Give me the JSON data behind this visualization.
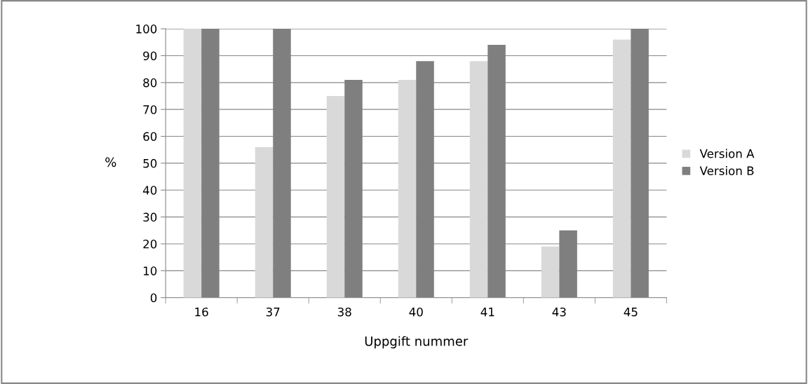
{
  "chart_data": {
    "type": "bar",
    "xlabel": "Uppgift nummer",
    "ylabel": "%",
    "categories": [
      "16",
      "37",
      "38",
      "40",
      "41",
      "43",
      "45"
    ],
    "series": [
      {
        "name": "Version A",
        "color": "#d9d9d9",
        "values": [
          100,
          56,
          75,
          81,
          88,
          19,
          96
        ]
      },
      {
        "name": "Version B",
        "color": "#7f7f7f",
        "values": [
          100,
          100,
          81,
          88,
          94,
          25,
          100
        ]
      }
    ],
    "ylim": [
      0,
      100
    ],
    "yticks": [
      0,
      10,
      20,
      30,
      40,
      50,
      60,
      70,
      80,
      90,
      100
    ],
    "grid": "y",
    "legend": "right"
  }
}
